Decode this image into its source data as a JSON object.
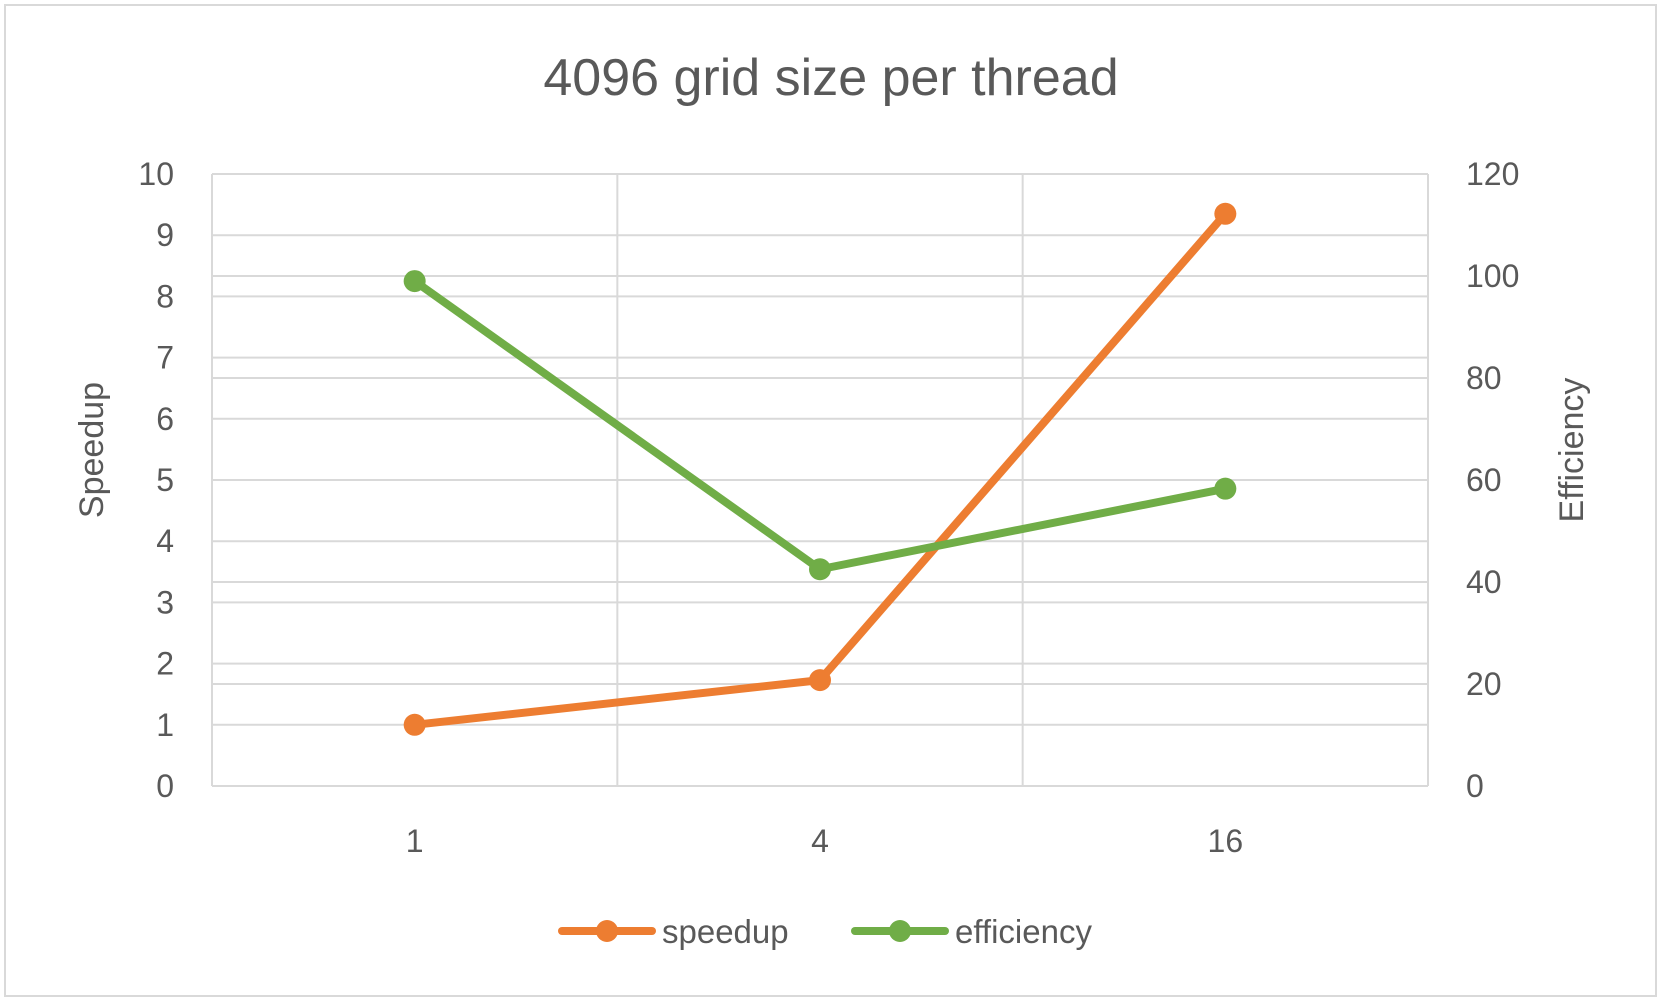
{
  "chart_data": {
    "type": "line",
    "title": "4096 grid size per thread",
    "categories": [
      "1",
      "4",
      "16"
    ],
    "ylabel": "Speedup",
    "ylabel_right": "Efficiency",
    "ylim": [
      0,
      10
    ],
    "yticks": [
      "0",
      "1",
      "2",
      "3",
      "4",
      "5",
      "6",
      "7",
      "8",
      "9",
      "10"
    ],
    "ylim_right": [
      0,
      120
    ],
    "yticks_right": [
      "0",
      "20",
      "40",
      "60",
      "80",
      "100",
      "120"
    ],
    "grid": true,
    "legend_position": "bottom",
    "series": [
      {
        "name": "speedup",
        "axis": "left",
        "color": "#ED7D31",
        "values": [
          1,
          1.73,
          9.35
        ]
      },
      {
        "name": "efficiency",
        "axis": "right",
        "color": "#70AD47",
        "values": [
          99,
          42.5,
          58.3
        ]
      }
    ]
  }
}
